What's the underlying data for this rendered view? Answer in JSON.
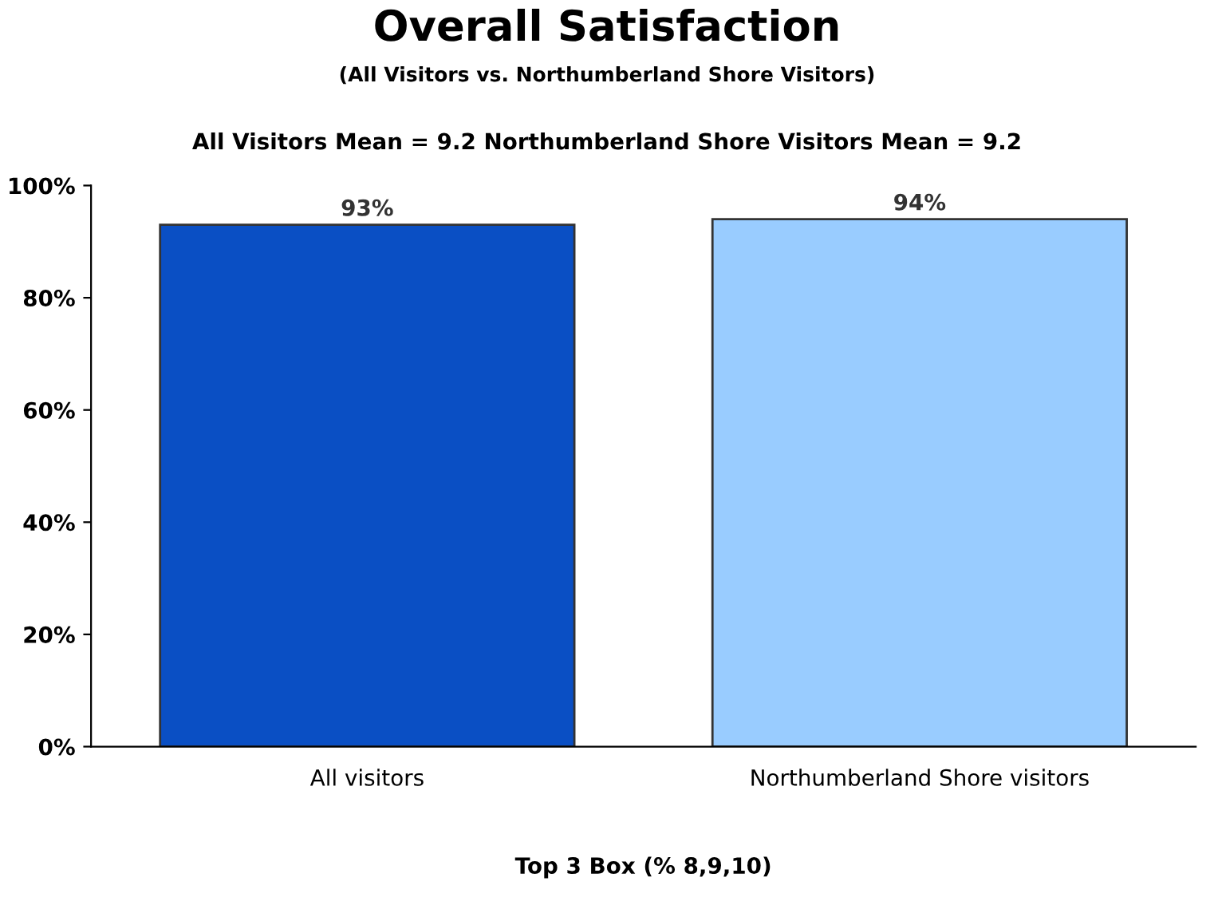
{
  "chart_data": {
    "type": "bar",
    "title": "Overall Satisfaction",
    "subtitle": "(All Visitors vs. Northumberland Shore Visitors)",
    "annotations": [
      "All Visitors Mean = 9.2 Northumberland Shore Visitors Mean = 9.2"
    ],
    "xlabel": "Top 3 Box (% 8,9,10)",
    "categories": [
      "All visitors",
      "Northumberland Shore visitors"
    ],
    "values": [
      93,
      94
    ],
    "colors": [
      "#0a4fc4",
      "#99ccff"
    ],
    "value_labels": [
      "93%",
      "94%"
    ],
    "ylim": [
      0,
      100
    ],
    "yticks": [
      {
        "value": 0,
        "label": "0%"
      },
      {
        "value": 20,
        "label": "20%"
      },
      {
        "value": 40,
        "label": "40%"
      },
      {
        "value": 60,
        "label": "60%"
      },
      {
        "value": 80,
        "label": "80%"
      },
      {
        "value": 100,
        "label": "100%"
      }
    ],
    "grid": false,
    "legend": false
  }
}
